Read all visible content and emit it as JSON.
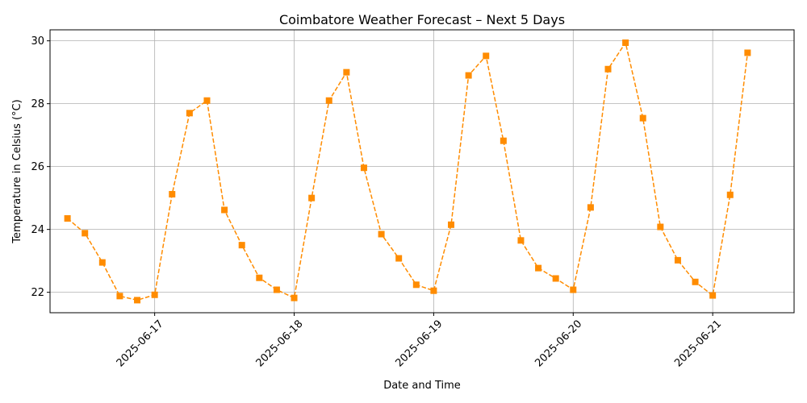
{
  "chart_data": {
    "type": "line",
    "title": "Coimbatore Weather Forecast – Next 5 Days",
    "xlabel": "Date and Time",
    "ylabel": "Temperature in Celsius (°C)",
    "ylim": [
      21.35,
      30.35
    ],
    "xlim": [
      "2025-06-16 06:00",
      "2025-06-21 14:00"
    ],
    "grid": true,
    "y_ticks": [
      22,
      24,
      26,
      28,
      30
    ],
    "x_ticks": [
      "2025-06-17",
      "2025-06-18",
      "2025-06-19",
      "2025-06-20",
      "2025-06-21"
    ],
    "series": [
      {
        "color": "#ff8c00",
        "marker": "square",
        "line_style": "dashed",
        "points": [
          {
            "x": "2025-06-16 09:00",
            "y": 24.35
          },
          {
            "x": "2025-06-16 12:00",
            "y": 23.88
          },
          {
            "x": "2025-06-16 15:00",
            "y": 22.95
          },
          {
            "x": "2025-06-16 18:00",
            "y": 21.88
          },
          {
            "x": "2025-06-16 21:00",
            "y": 21.75
          },
          {
            "x": "2025-06-17 00:00",
            "y": 21.92
          },
          {
            "x": "2025-06-17 03:00",
            "y": 25.12
          },
          {
            "x": "2025-06-17 06:00",
            "y": 27.7
          },
          {
            "x": "2025-06-17 09:00",
            "y": 28.1
          },
          {
            "x": "2025-06-17 12:00",
            "y": 24.62
          },
          {
            "x": "2025-06-17 15:00",
            "y": 23.5
          },
          {
            "x": "2025-06-17 18:00",
            "y": 22.46
          },
          {
            "x": "2025-06-17 21:00",
            "y": 22.08
          },
          {
            "x": "2025-06-18 00:00",
            "y": 21.82
          },
          {
            "x": "2025-06-18 03:00",
            "y": 25.0
          },
          {
            "x": "2025-06-18 06:00",
            "y": 28.1
          },
          {
            "x": "2025-06-18 09:00",
            "y": 29.0
          },
          {
            "x": "2025-06-18 12:00",
            "y": 25.96
          },
          {
            "x": "2025-06-18 15:00",
            "y": 23.85
          },
          {
            "x": "2025-06-18 18:00",
            "y": 23.08
          },
          {
            "x": "2025-06-18 21:00",
            "y": 22.24
          },
          {
            "x": "2025-06-19 00:00",
            "y": 22.05
          },
          {
            "x": "2025-06-19 03:00",
            "y": 24.15
          },
          {
            "x": "2025-06-19 06:00",
            "y": 28.9
          },
          {
            "x": "2025-06-19 09:00",
            "y": 29.52
          },
          {
            "x": "2025-06-19 12:00",
            "y": 26.82
          },
          {
            "x": "2025-06-19 15:00",
            "y": 23.65
          },
          {
            "x": "2025-06-19 18:00",
            "y": 22.77
          },
          {
            "x": "2025-06-19 21:00",
            "y": 22.44
          },
          {
            "x": "2025-06-20 00:00",
            "y": 22.08
          },
          {
            "x": "2025-06-20 03:00",
            "y": 24.7
          },
          {
            "x": "2025-06-20 06:00",
            "y": 29.1
          },
          {
            "x": "2025-06-20 09:00",
            "y": 29.94
          },
          {
            "x": "2025-06-20 12:00",
            "y": 27.54
          },
          {
            "x": "2025-06-20 15:00",
            "y": 24.08
          },
          {
            "x": "2025-06-20 18:00",
            "y": 23.02
          },
          {
            "x": "2025-06-20 21:00",
            "y": 22.33
          },
          {
            "x": "2025-06-21 00:00",
            "y": 21.9
          },
          {
            "x": "2025-06-21 03:00",
            "y": 25.1
          },
          {
            "x": "2025-06-21 06:00",
            "y": 29.62
          }
        ]
      }
    ]
  }
}
